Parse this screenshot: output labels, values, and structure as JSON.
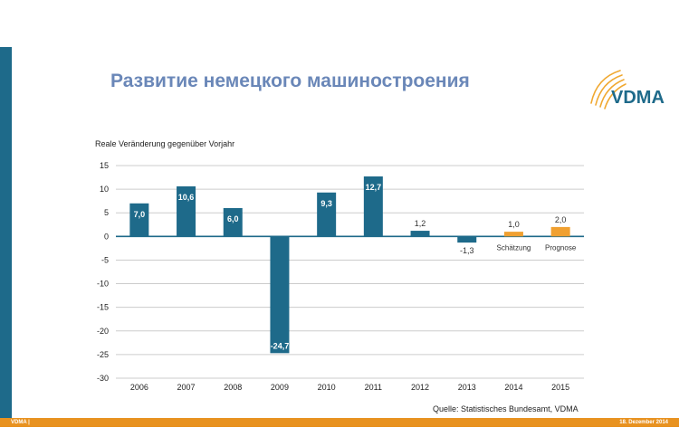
{
  "slide": {
    "title": "Развитие немецкого машиностроения",
    "logo_text": "VDMA",
    "source": "Quelle: Statistisches Bundesamt, VDMA",
    "footer_left": "VDMA |",
    "footer_right": "18. Dezember 2014"
  },
  "colors": {
    "accent_blue": "#1e6a8a",
    "accent_orange": "#e89220",
    "title_color": "#6a87b8"
  },
  "chart_data": {
    "type": "bar",
    "ylabel": "Reale Veränderung gegenüber Vorjahr",
    "categories": [
      "2006",
      "2007",
      "2008",
      "2009",
      "2010",
      "2011",
      "2012",
      "2013",
      "2014",
      "2015"
    ],
    "values": [
      7.0,
      10.6,
      6.0,
      -24.7,
      9.3,
      12.7,
      1.2,
      -1.3,
      1.0,
      2.0
    ],
    "value_labels": [
      "7,0",
      "10,6",
      "6,0",
      "-24,7",
      "9,3",
      "12,7",
      "1,2",
      "-1,3",
      "1,0",
      "2,0"
    ],
    "bar_colors": [
      "#1e6a8a",
      "#1e6a8a",
      "#1e6a8a",
      "#1e6a8a",
      "#1e6a8a",
      "#1e6a8a",
      "#1e6a8a",
      "#1e6a8a",
      "#f0a030",
      "#f0a030"
    ],
    "annotations": [
      {
        "category": "2014",
        "text": "Schätzung"
      },
      {
        "category": "2015",
        "text": "Prognose"
      }
    ],
    "ylim": [
      -30,
      15
    ],
    "yticks": [
      15,
      10,
      5,
      0,
      -5,
      -10,
      -15,
      -20,
      -25,
      -30
    ],
    "grid": true
  }
}
